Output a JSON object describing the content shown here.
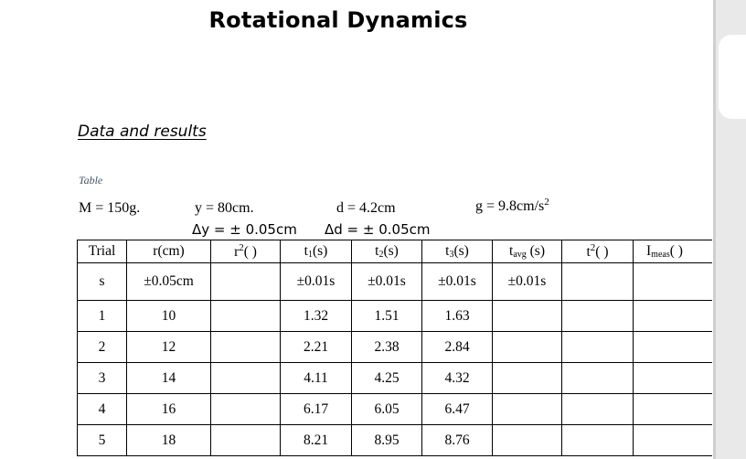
{
  "title": "Rotational Dynamics",
  "section_heading": "Data and results",
  "table_caption": "Table",
  "parameters": {
    "mass": "M = 150g.",
    "y": "y = 80cm.",
    "dy": "Δy = ± 0.05cm",
    "d": "d = 4.2cm",
    "dd": "Δd = ± 0.05cm",
    "g_prefix": "g = 9.8cm/s",
    "g_sup": "2"
  },
  "table": {
    "header1": {
      "trial": "Trial",
      "r": "r(cm)",
      "r2_base": "r",
      "r2_sup": "2",
      "r2_paren": "(    )",
      "t1_base": "t",
      "t1_sub": "1",
      "t1_unit": "(s)",
      "t2_base": "t",
      "t2_sub": "2",
      "t2_unit": "(s)",
      "t3_base": "t",
      "t3_sub": "3",
      "t3_unit": "(s)",
      "tavg_base": "t",
      "tavg_sub": "avg",
      "tavg_unit": " (s)",
      "tsq_base": "t",
      "tsq_sup": "2",
      "tsq_paren": "(     )",
      "imeas_base": "I",
      "imeas_sub": "meas",
      "imeas_paren": "(      )"
    },
    "header2": {
      "trial": "s",
      "r": "±0.05cm",
      "r2": "",
      "t1": "±0.01s",
      "t2": "±0.01s",
      "t3": "±0.01s",
      "tavg": "±0.01s",
      "tsq": "",
      "imeas": ""
    },
    "rows": [
      {
        "trial": "1",
        "r": "10",
        "r2": "",
        "t1": "1.32",
        "t2": "1.51",
        "t3": "1.63",
        "tavg": "",
        "tsq": "",
        "imeas": ""
      },
      {
        "trial": "2",
        "r": "12",
        "r2": "",
        "t1": "2.21",
        "t2": "2.38",
        "t3": "2.84",
        "tavg": "",
        "tsq": "",
        "imeas": ""
      },
      {
        "trial": "3",
        "r": "14",
        "r2": "",
        "t1": "4.11",
        "t2": "4.25",
        "t3": "4.32",
        "tavg": "",
        "tsq": "",
        "imeas": ""
      },
      {
        "trial": "4",
        "r": "16",
        "r2": "",
        "t1": "6.17",
        "t2": "6.05",
        "t3": "6.47",
        "tavg": "",
        "tsq": "",
        "imeas": ""
      },
      {
        "trial": "5",
        "r": "18",
        "r2": "",
        "t1": "8.21",
        "t2": "8.95",
        "t3": "8.76",
        "tavg": "",
        "tsq": "",
        "imeas": ""
      }
    ]
  }
}
